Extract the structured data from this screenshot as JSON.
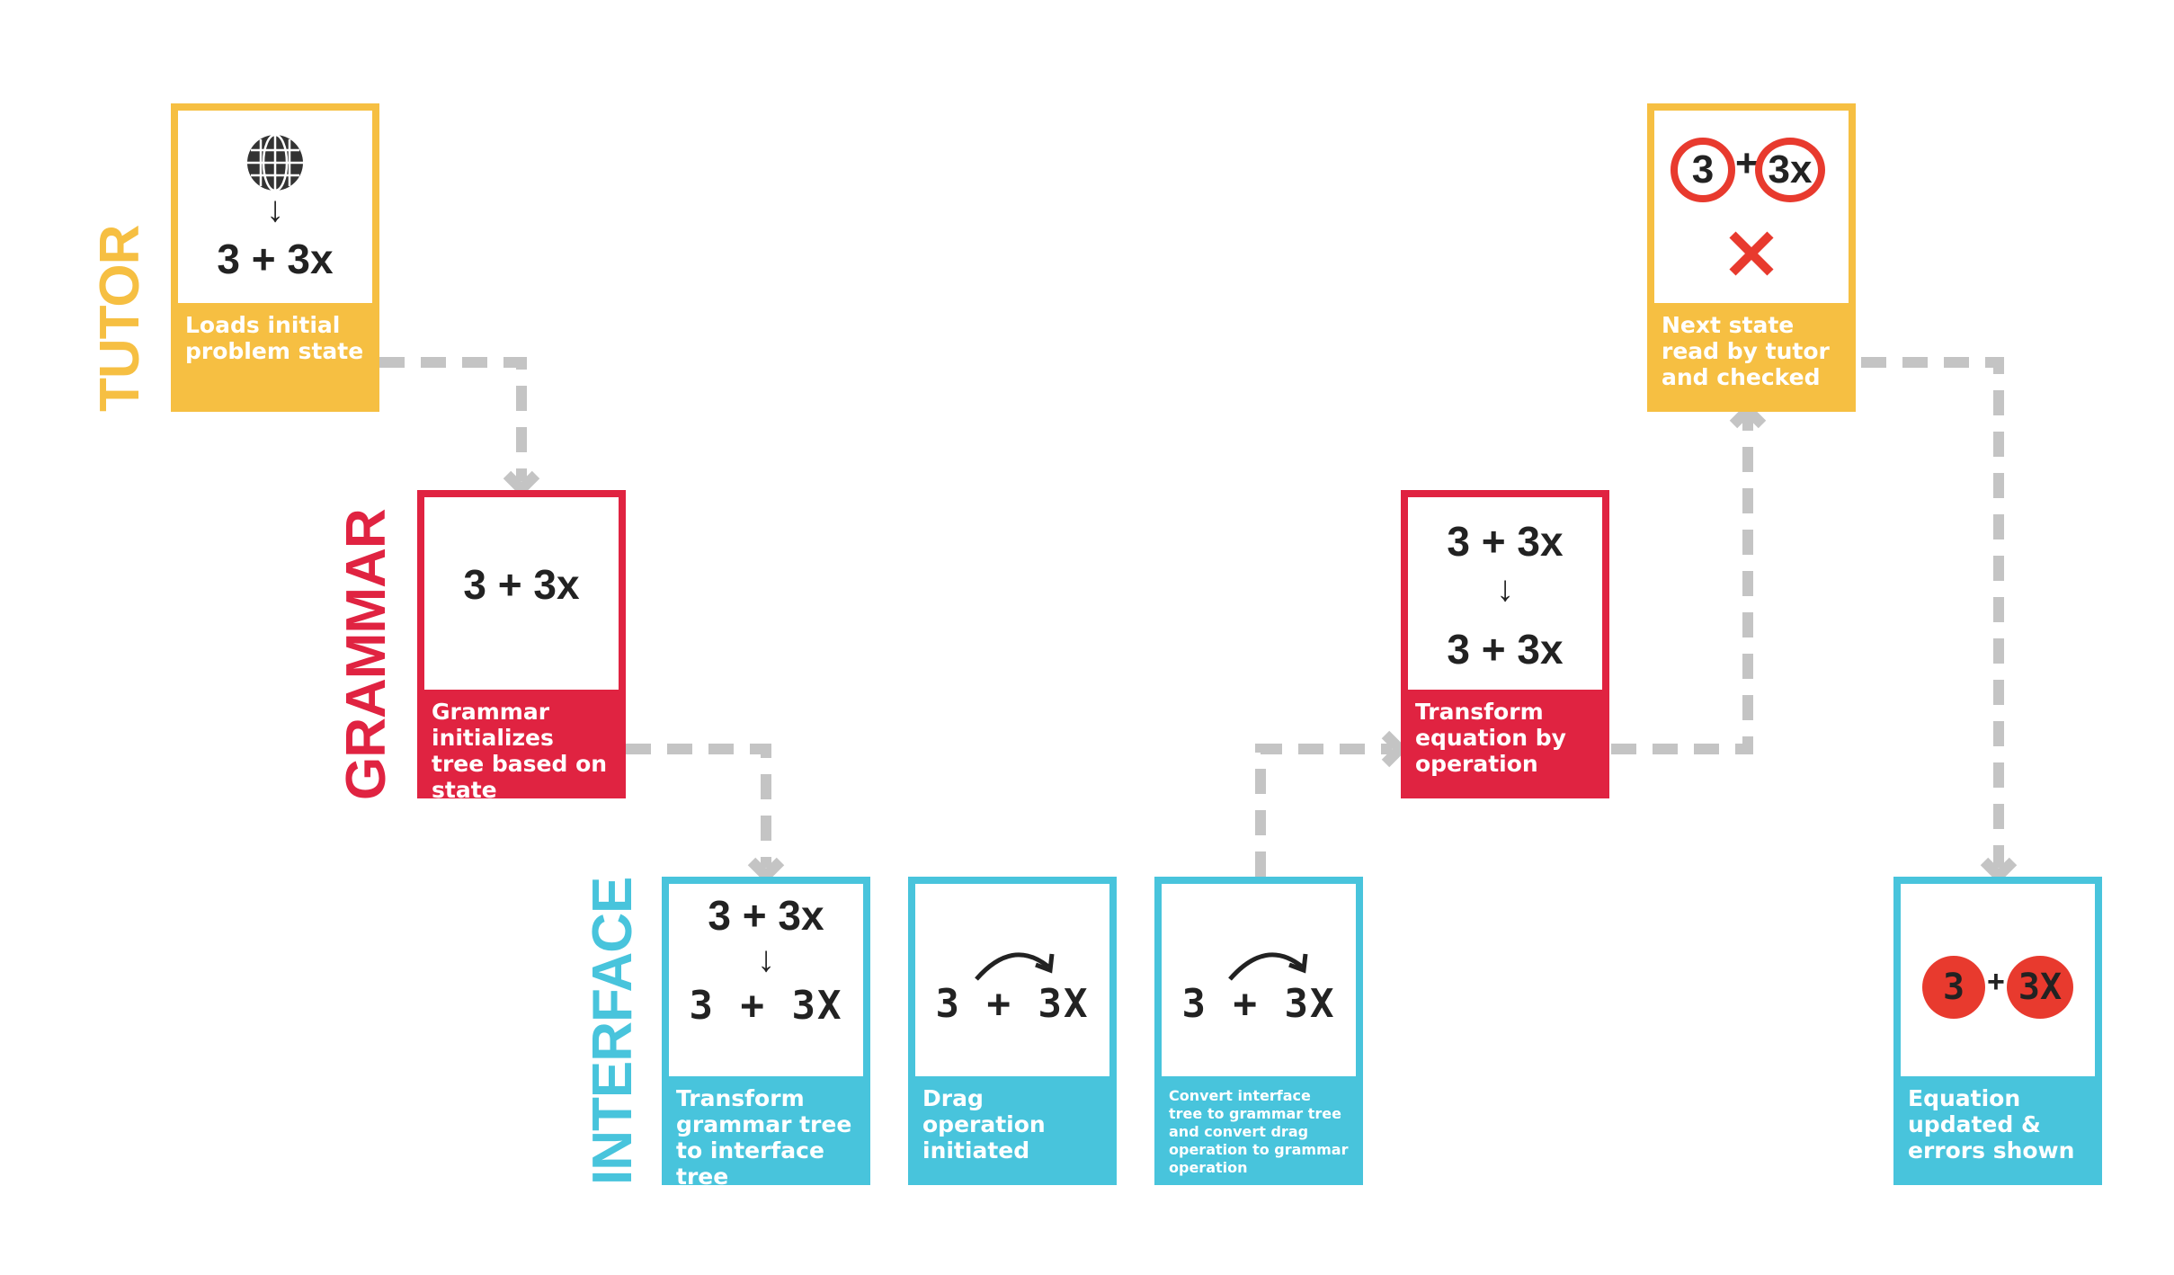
{
  "lanes": {
    "tutor": "TUTOR",
    "grammar": "GRAMMAR",
    "interface": "INTERFACE"
  },
  "colors": {
    "tutor": "#F6BF42",
    "grammar": "#E02341",
    "interface": "#48C4DC",
    "connector": "#C4C4C4",
    "error": "#E83A2E"
  },
  "cards": {
    "tutor_load": {
      "icon": "globe-icon",
      "expr": "3 + 3x",
      "caption": "Loads initial problem state"
    },
    "grammar_init": {
      "expr": "3 + 3x",
      "caption": "Grammar initializes tree based on state"
    },
    "interface_transform": {
      "expr_top": "3 + 3x",
      "expr_bottom": "3 + 3X",
      "caption": "Transform grammar tree to interface tree"
    },
    "interface_drag": {
      "expr": "3 + 3X",
      "caption": "Drag operation initiated"
    },
    "interface_convert": {
      "expr": "3 + 3X",
      "caption": "Convert interface tree to grammar tree and convert drag operation to grammar operation"
    },
    "grammar_transform": {
      "expr_top": "3 + 3x",
      "expr_bottom": "3 + 3x",
      "caption": "Transform equation by operation"
    },
    "tutor_check": {
      "term_a": "3",
      "plus": "+",
      "term_b": "3x",
      "icon": "x-mark-icon",
      "caption": "Next state read by tutor and checked"
    },
    "interface_update": {
      "term_a": "3",
      "plus": "+",
      "term_b": "3X",
      "caption": "Equation updated & errors shown"
    }
  }
}
